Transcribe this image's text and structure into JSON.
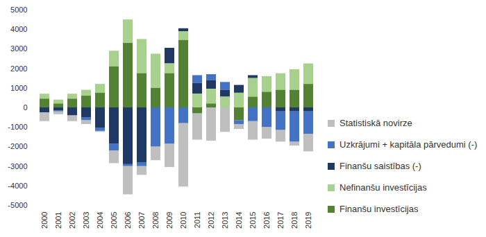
{
  "chart_data": {
    "type": "bar",
    "stacked": true,
    "legend": "right",
    "grid": false,
    "categories": [
      "2000",
      "2001",
      "2002",
      "2003",
      "2004",
      "2005",
      "2006",
      "2007",
      "2008",
      "2009",
      "2010",
      "2011",
      "2012",
      "2013",
      "2014",
      "2015",
      "2016",
      "2017",
      "2018",
      "2019"
    ],
    "ylim": [
      -5000,
      5000
    ],
    "yticks": [
      -5000,
      -4000,
      -3000,
      -2000,
      -1000,
      0,
      1000,
      2000,
      3000,
      4000,
      5000
    ],
    "series": [
      {
        "name": "Statistiskā novirze",
        "color": "#bfbfbf",
        "values": [
          -450,
          -150,
          -300,
          -200,
          -50,
          -650,
          -1450,
          -450,
          -700,
          -1200,
          -3250,
          -1350,
          -1700,
          -1250,
          -250,
          -950,
          -600,
          -600,
          -200,
          -900
        ]
      },
      {
        "name": "Uzkrājumi + kapitāla pārvedumi (-)",
        "color": "#4472c4",
        "values": [
          0,
          -50,
          0,
          -150,
          -150,
          -350,
          -100,
          -200,
          -2000,
          -1850,
          -800,
          400,
          300,
          400,
          -200,
          -700,
          -1000,
          -950,
          -1550,
          -1150
        ]
      },
      {
        "name": "Finanšu saistības (-)",
        "color": "#1f3864",
        "values": [
          -250,
          -150,
          -400,
          -500,
          -1050,
          -1850,
          -2900,
          -2800,
          0,
          800,
          150,
          550,
          450,
          350,
          400,
          150,
          0,
          -200,
          -200,
          -200
        ]
      },
      {
        "name": "Nefinanšu investīcijas",
        "color": "#a9d18e",
        "values": [
          250,
          200,
          250,
          300,
          450,
          800,
          1200,
          1750,
          1750,
          500,
          450,
          700,
          750,
          550,
          750,
          950,
          800,
          850,
          1050,
          1050
        ]
      },
      {
        "name": "Finanšu investīcijas",
        "color": "#548235",
        "values": [
          450,
          200,
          450,
          600,
          750,
          2100,
          3300,
          1750,
          1000,
          1750,
          3450,
          -300,
          200,
          0,
          -650,
          550,
          800,
          900,
          900,
          1200
        ]
      }
    ]
  }
}
